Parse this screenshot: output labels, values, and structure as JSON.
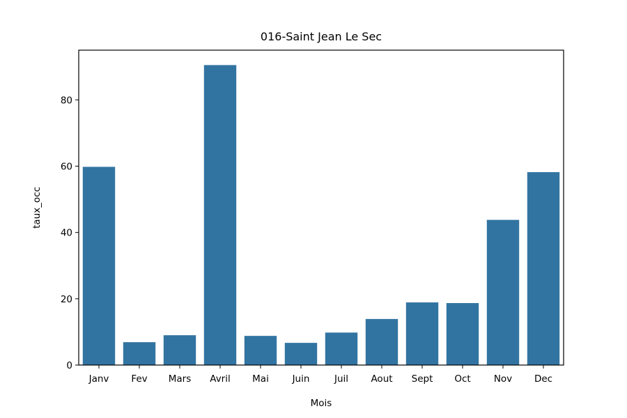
{
  "chart_data": {
    "type": "bar",
    "title": "016-Saint Jean Le Sec",
    "xlabel": "Mois",
    "ylabel": "taux_occ",
    "categories": [
      "Janv",
      "Fev",
      "Mars",
      "Avril",
      "Mai",
      "Juin",
      "Juil",
      "Aout",
      "Sept",
      "Oct",
      "Nov",
      "Dec"
    ],
    "values": [
      59.8,
      6.9,
      9.0,
      90.5,
      8.8,
      6.7,
      9.8,
      13.9,
      18.9,
      18.7,
      43.8,
      58.2
    ],
    "ylim": [
      0,
      95
    ],
    "yticks": [
      0,
      20,
      40,
      60,
      80
    ],
    "bar_color": "#3274a1",
    "grid": false,
    "legend": "none"
  }
}
